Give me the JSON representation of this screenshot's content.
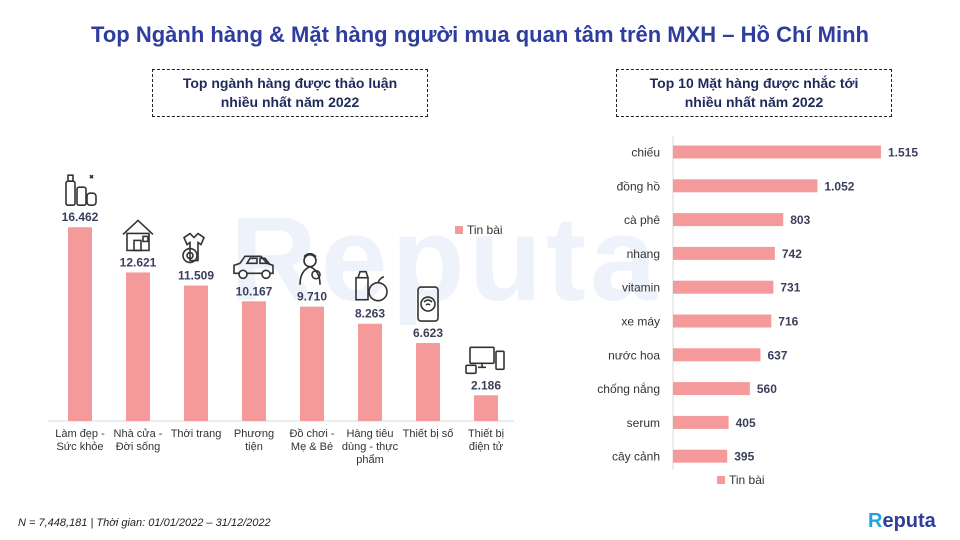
{
  "title": "Top Ngành hàng & Mặt hàng người mua quan tâm trên MXH – Hồ Chí Minh",
  "footnote": "N = 7,448,181 | Thời gian: 01/01/2022 – 31/12/2022",
  "logo": {
    "text": "Reputa"
  },
  "watermark": "Reputa",
  "colors": {
    "bar": "#f59a9a",
    "title": "#2f3d9e",
    "box_text": "#1f2a5c"
  },
  "chart_data": [
    {
      "type": "bar",
      "title": "Top ngành hàng được thảo luận nhiều nhất năm 2022",
      "title_lines": [
        "Top ngành hàng được thảo luận",
        "nhiều nhất năm 2022"
      ],
      "legend": {
        "label": "Tin bài",
        "position": "top-right"
      },
      "categories": [
        [
          "Làm đẹp -",
          "Sức khỏe"
        ],
        [
          "Nhà cửa -",
          "Đời sống"
        ],
        [
          "Thời trang"
        ],
        [
          "Phương",
          "tiện"
        ],
        [
          "Đồ chơi -",
          "Mẹ & Bé"
        ],
        [
          "Hàng tiêu",
          "dùng - thực",
          "phẩm"
        ],
        [
          "Thiết bị số"
        ],
        [
          "Thiết bị",
          "điện tử"
        ]
      ],
      "values": [
        16462,
        12621,
        11509,
        10167,
        9710,
        8263,
        6623,
        2186
      ],
      "value_labels": [
        "16.462",
        "12.621",
        "11.509",
        "10.167",
        "9.710",
        "8.263",
        "6.623",
        "2.186"
      ],
      "icons": [
        "cosmetics-icon",
        "house-icon",
        "clothes-icon",
        "car-icon",
        "mother-baby-icon",
        "grocery-icon",
        "smartphone-icon",
        "electronics-icon"
      ],
      "ylim": [
        0,
        17500
      ]
    },
    {
      "type": "bar",
      "orientation": "horizontal",
      "title": "Top 10 Mặt hàng được nhắc tới nhiều nhất năm 2022",
      "title_lines": [
        "Top 10 Mặt hàng được nhắc tới",
        "nhiều nhất năm 2022"
      ],
      "legend": {
        "label": "Tin bài",
        "position": "bottom"
      },
      "categories": [
        "chiếu",
        "đồng hồ",
        "cà phê",
        "nhang",
        "vitamin",
        "xe máy",
        "nước hoa",
        "chống nắng",
        "serum",
        "cây cảnh"
      ],
      "values": [
        1515,
        1052,
        803,
        742,
        731,
        716,
        637,
        560,
        405,
        395
      ],
      "value_labels": [
        "1.515",
        "1.052",
        "803",
        "742",
        "731",
        "716",
        "637",
        "560",
        "405",
        "395"
      ],
      "xlim": [
        0,
        1600
      ]
    }
  ]
}
